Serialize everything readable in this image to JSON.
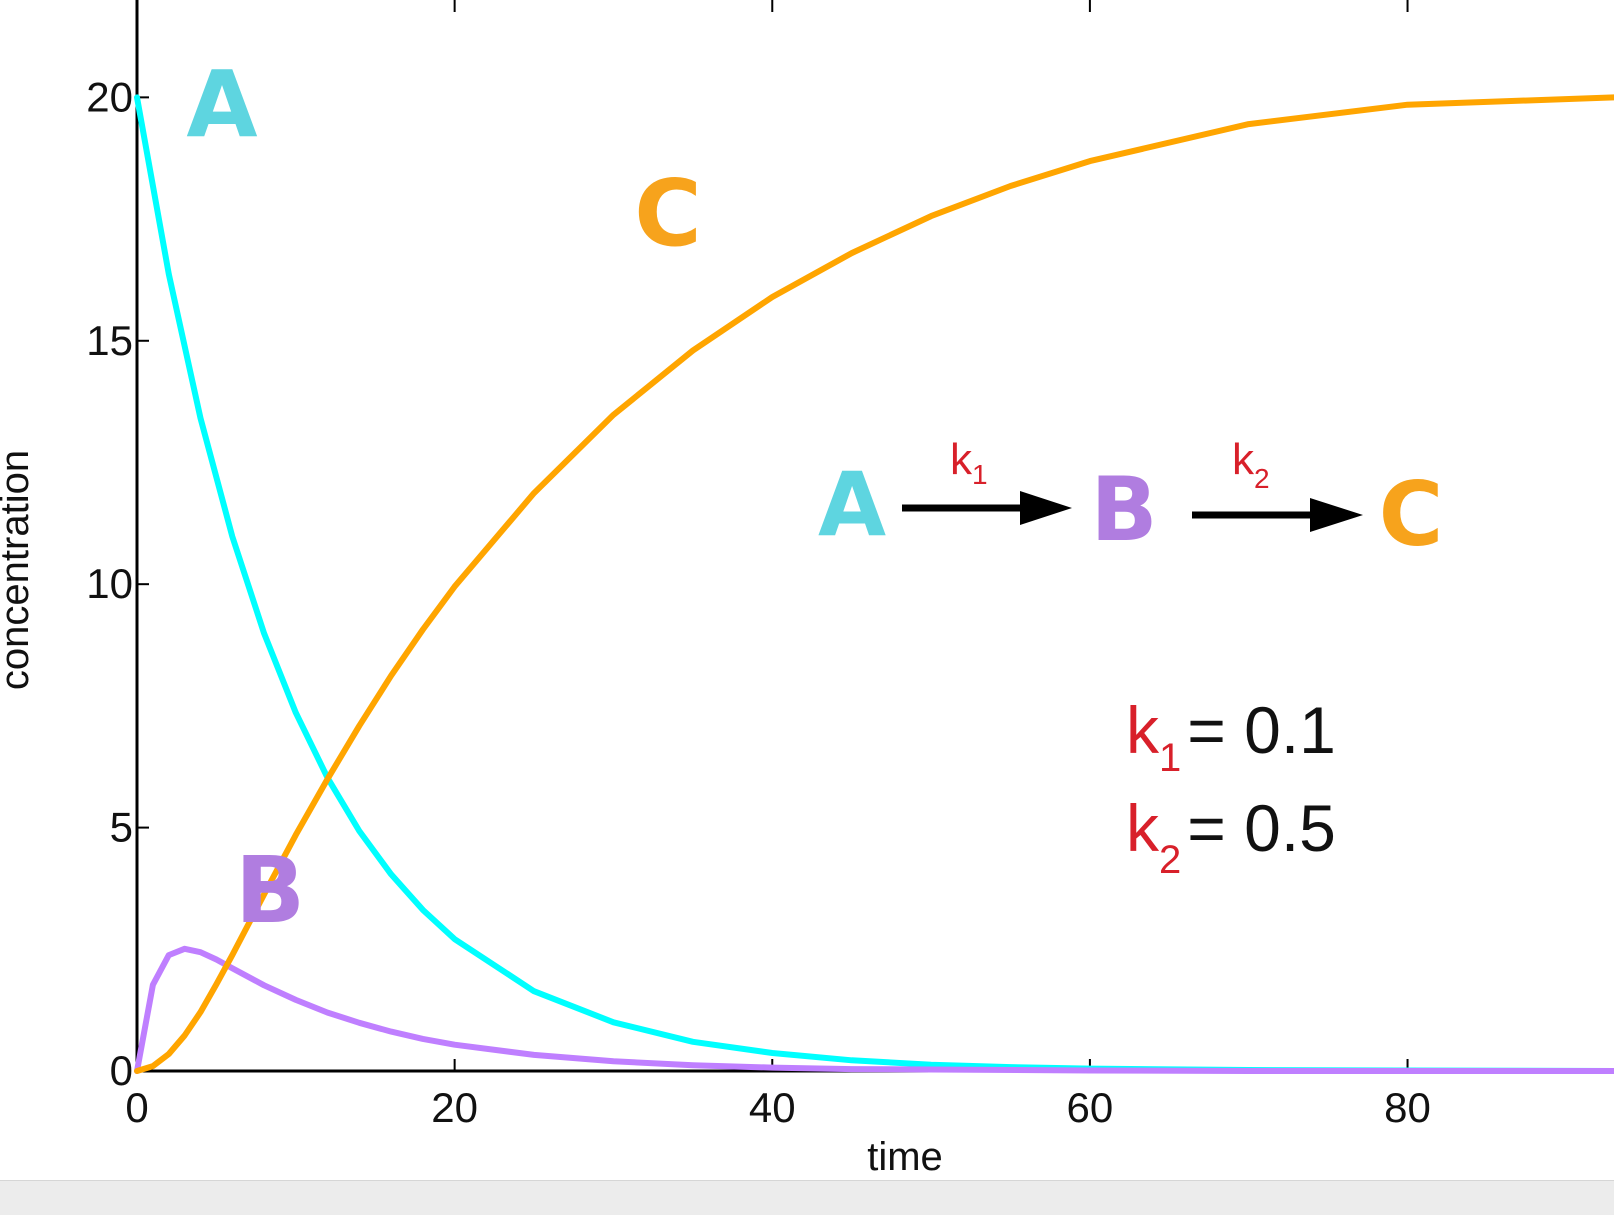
{
  "chart_data": {
    "type": "line",
    "xlabel": "time",
    "ylabel": "concentration",
    "xlim": [
      0,
      93
    ],
    "ylim": [
      0,
      22
    ],
    "x_ticks": [
      0,
      20,
      40,
      60,
      80
    ],
    "y_ticks": [
      0,
      5,
      10,
      15,
      20
    ],
    "x_tick_labels": [
      "0",
      "20",
      "40",
      "60",
      "80"
    ],
    "y_tick_labels": [
      "0",
      "5",
      "10",
      "15",
      "20"
    ],
    "grid": false,
    "series": [
      {
        "name": "A",
        "color": "#00ffff",
        "label_color": "#5ed5e0",
        "x": [
          0,
          2,
          4,
          6,
          8,
          10,
          12,
          14,
          16,
          18,
          20,
          25,
          30,
          35,
          40,
          45,
          50,
          55,
          60,
          70,
          80,
          93
        ],
        "values": [
          20,
          16.37,
          13.41,
          10.98,
          8.99,
          7.36,
          6.02,
          4.93,
          4.04,
          3.31,
          2.71,
          1.64,
          1.0,
          0.6,
          0.37,
          0.22,
          0.13,
          0.08,
          0.05,
          0.02,
          0.01,
          0.0
        ]
      },
      {
        "name": "B",
        "color": "#bf7fff",
        "label_color": "#b07de0",
        "x": [
          0,
          1,
          2,
          3,
          4,
          5,
          6,
          8,
          10,
          12,
          14,
          16,
          18,
          20,
          25,
          30,
          35,
          40,
          45,
          50,
          60,
          70,
          80,
          93
        ],
        "values": [
          0,
          1.77,
          2.38,
          2.51,
          2.44,
          2.29,
          2.11,
          1.76,
          1.46,
          1.2,
          0.99,
          0.81,
          0.66,
          0.54,
          0.33,
          0.2,
          0.12,
          0.07,
          0.04,
          0.03,
          0.01,
          0.0,
          0.0,
          0.0
        ]
      },
      {
        "name": "C",
        "color": "#ffa500",
        "label_color": "#f7a31c",
        "x": [
          0,
          1,
          2,
          3,
          4,
          5,
          6,
          8,
          10,
          12,
          14,
          16,
          18,
          20,
          25,
          30,
          35,
          40,
          45,
          50,
          55,
          60,
          70,
          80,
          93
        ],
        "values": [
          0,
          0.1,
          0.35,
          0.73,
          1.21,
          1.78,
          2.38,
          3.63,
          4.85,
          6.0,
          7.09,
          8.12,
          9.07,
          9.95,
          11.87,
          13.48,
          14.8,
          15.9,
          16.8,
          17.56,
          18.18,
          18.69,
          19.45,
          19.85,
          20.0
        ]
      }
    ],
    "annotations": {
      "curve_labels": [
        "A",
        "B",
        "C"
      ],
      "scheme": [
        "A",
        "B",
        "C"
      ],
      "rate_labels": [
        {
          "k": "k",
          "sub": "1"
        },
        {
          "k": "k",
          "sub": "2"
        }
      ],
      "params": [
        {
          "k": "k",
          "sub": "1",
          "value": "= 0.1"
        },
        {
          "k": "k",
          "sub": "2",
          "value": "= 0.5"
        }
      ],
      "rate_color": "#d8202a",
      "arrow_color": "#000000"
    }
  }
}
